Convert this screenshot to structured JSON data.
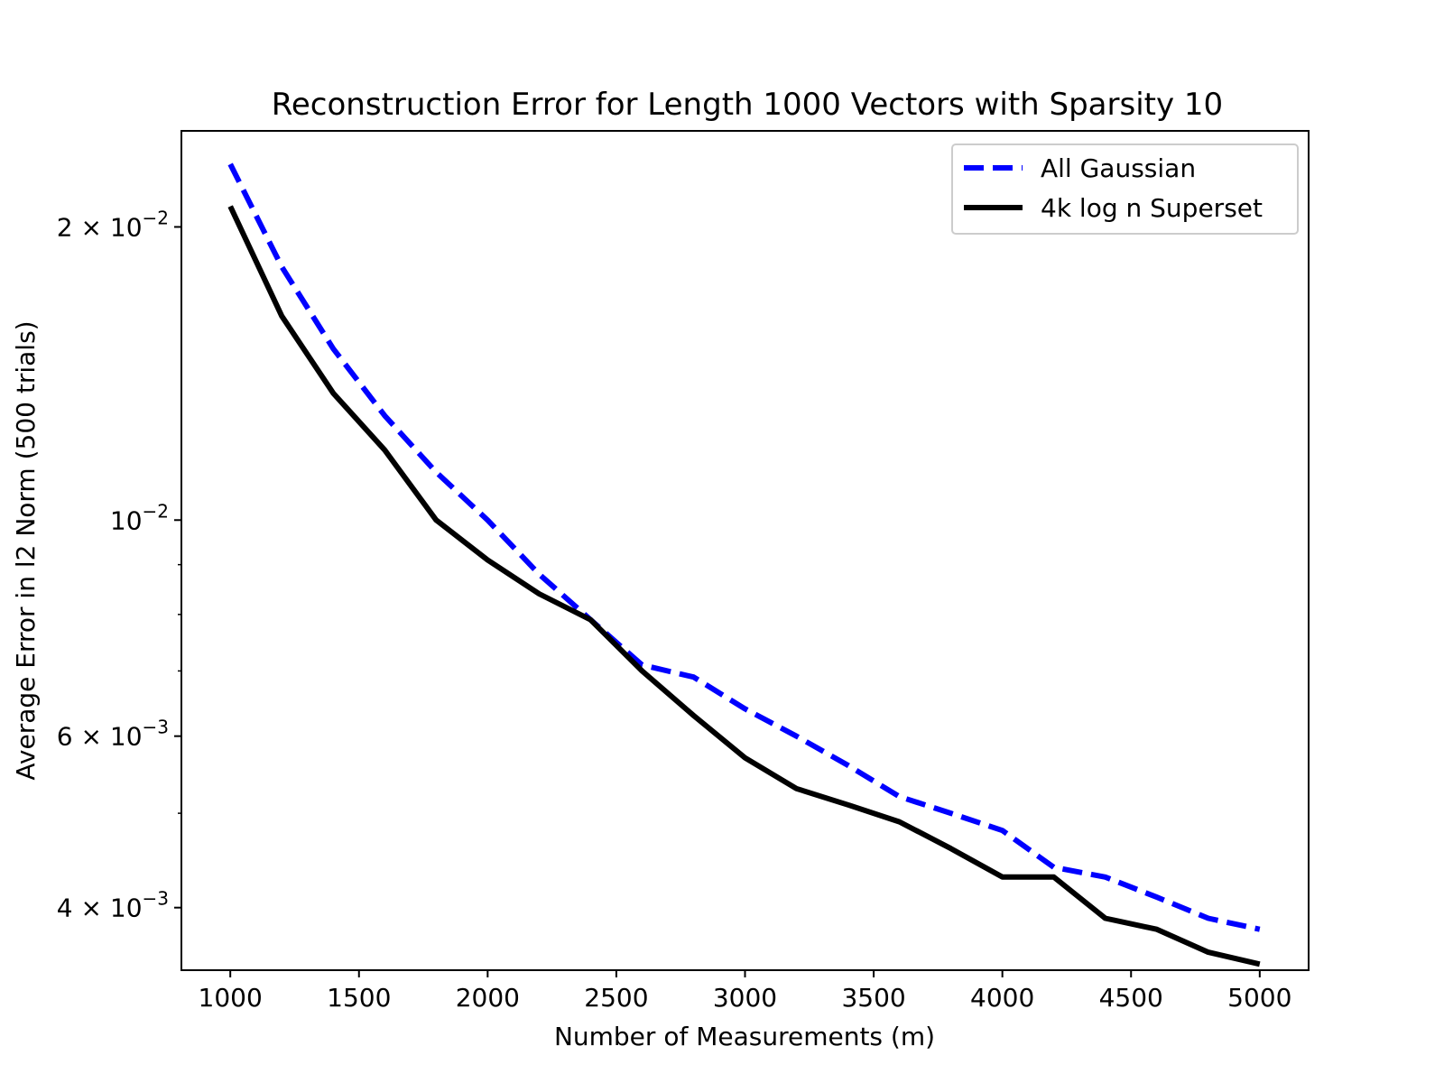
{
  "chart_data": {
    "type": "line",
    "title": "Reconstruction Error for Length 1000 Vectors with Sparsity 10",
    "xlabel": "Number of Measurements (m)",
    "ylabel": "Average Error in l2 Norm (500 trials)",
    "yscale": "log",
    "xlim": [
      810,
      5190
    ],
    "ylim": [
      0.00345,
      0.0251
    ],
    "grid": false,
    "legend_position": "top-right",
    "x": [
      1000,
      1200,
      1400,
      1600,
      1800,
      2000,
      2200,
      2400,
      2600,
      2800,
      3000,
      3200,
      3400,
      3600,
      3800,
      4000,
      4200,
      4400,
      4600,
      4800,
      5000
    ],
    "x_ticks": [
      {
        "value": 1000,
        "label": "1000"
      },
      {
        "value": 1500,
        "label": "1500"
      },
      {
        "value": 2000,
        "label": "2000"
      },
      {
        "value": 2500,
        "label": "2500"
      },
      {
        "value": 3000,
        "label": "3000"
      },
      {
        "value": 3500,
        "label": "3500"
      },
      {
        "value": 4000,
        "label": "4000"
      },
      {
        "value": 4500,
        "label": "4500"
      },
      {
        "value": 5000,
        "label": "5000"
      }
    ],
    "y_ticks": [
      {
        "value": 0.02,
        "base": "2 × 10",
        "exp": "−2"
      },
      {
        "value": 0.01,
        "base": "10",
        "exp": "−2"
      },
      {
        "value": 0.006,
        "base": "6 × 10",
        "exp": "−3"
      },
      {
        "value": 0.004,
        "base": "4 × 10",
        "exp": "−3"
      }
    ],
    "y_minor_ticks": [
      0.003,
      0.005,
      0.007,
      0.008,
      0.009
    ],
    "series": [
      {
        "name": "All Gaussian",
        "color": "#0000ff",
        "style": "dashed",
        "values": [
          0.0232,
          0.0182,
          0.015,
          0.0128,
          0.0112,
          0.01,
          0.0088,
          0.0079,
          0.0071,
          0.0069,
          0.0064,
          0.006,
          0.0056,
          0.0052,
          0.005,
          0.0048,
          0.0044,
          0.0043,
          0.0041,
          0.0039,
          0.0038
        ]
      },
      {
        "name": "4k log n Superset",
        "color": "#000000",
        "style": "solid",
        "values": [
          0.021,
          0.0162,
          0.0135,
          0.0118,
          0.01,
          0.0091,
          0.0084,
          0.0079,
          0.007,
          0.0063,
          0.0057,
          0.0053,
          0.0051,
          0.0049,
          0.0046,
          0.0043,
          0.0043,
          0.0039,
          0.0038,
          0.0036,
          0.0035
        ]
      }
    ]
  }
}
